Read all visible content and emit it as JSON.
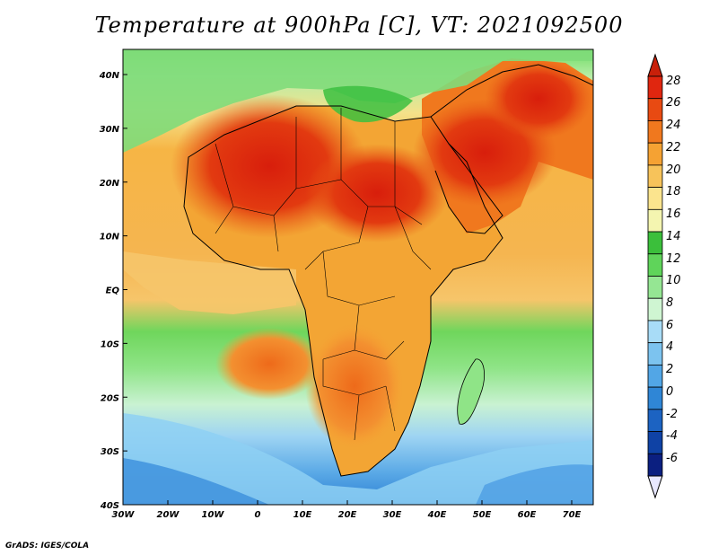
{
  "title": "Temperature at 900hPa [C], VT: 2021092500",
  "footer": "GrADS: IGES/COLA",
  "lon_labels": [
    "30W",
    "20W",
    "10W",
    "0",
    "10E",
    "20E",
    "30E",
    "40E",
    "50E",
    "60E",
    "70E"
  ],
  "lat_labels": [
    "40N",
    "30N",
    "20N",
    "10N",
    "EQ",
    "10S",
    "20S",
    "30S",
    "40S"
  ],
  "colorbar": {
    "labels": [
      "28",
      "26",
      "24",
      "22",
      "20",
      "18",
      "16",
      "14",
      "12",
      "10",
      "8",
      "6",
      "4",
      "2",
      "0",
      "-2",
      "-4",
      "-6"
    ],
    "colors": [
      "#e0260f",
      "#e84a12",
      "#f0781e",
      "#f5a233",
      "#f7c35a",
      "#fbe48e",
      "#f4f5b0",
      "#3bbf3b",
      "#5fd45a",
      "#95e693",
      "#cff5d2",
      "#a8dcf7",
      "#7cc3ef",
      "#52a6e6",
      "#2f86d6",
      "#1c63c2",
      "#0f42a5",
      "#0b1f80"
    ],
    "top_color": "#c8200a",
    "bottom_color": "#e8e8ff"
  }
}
